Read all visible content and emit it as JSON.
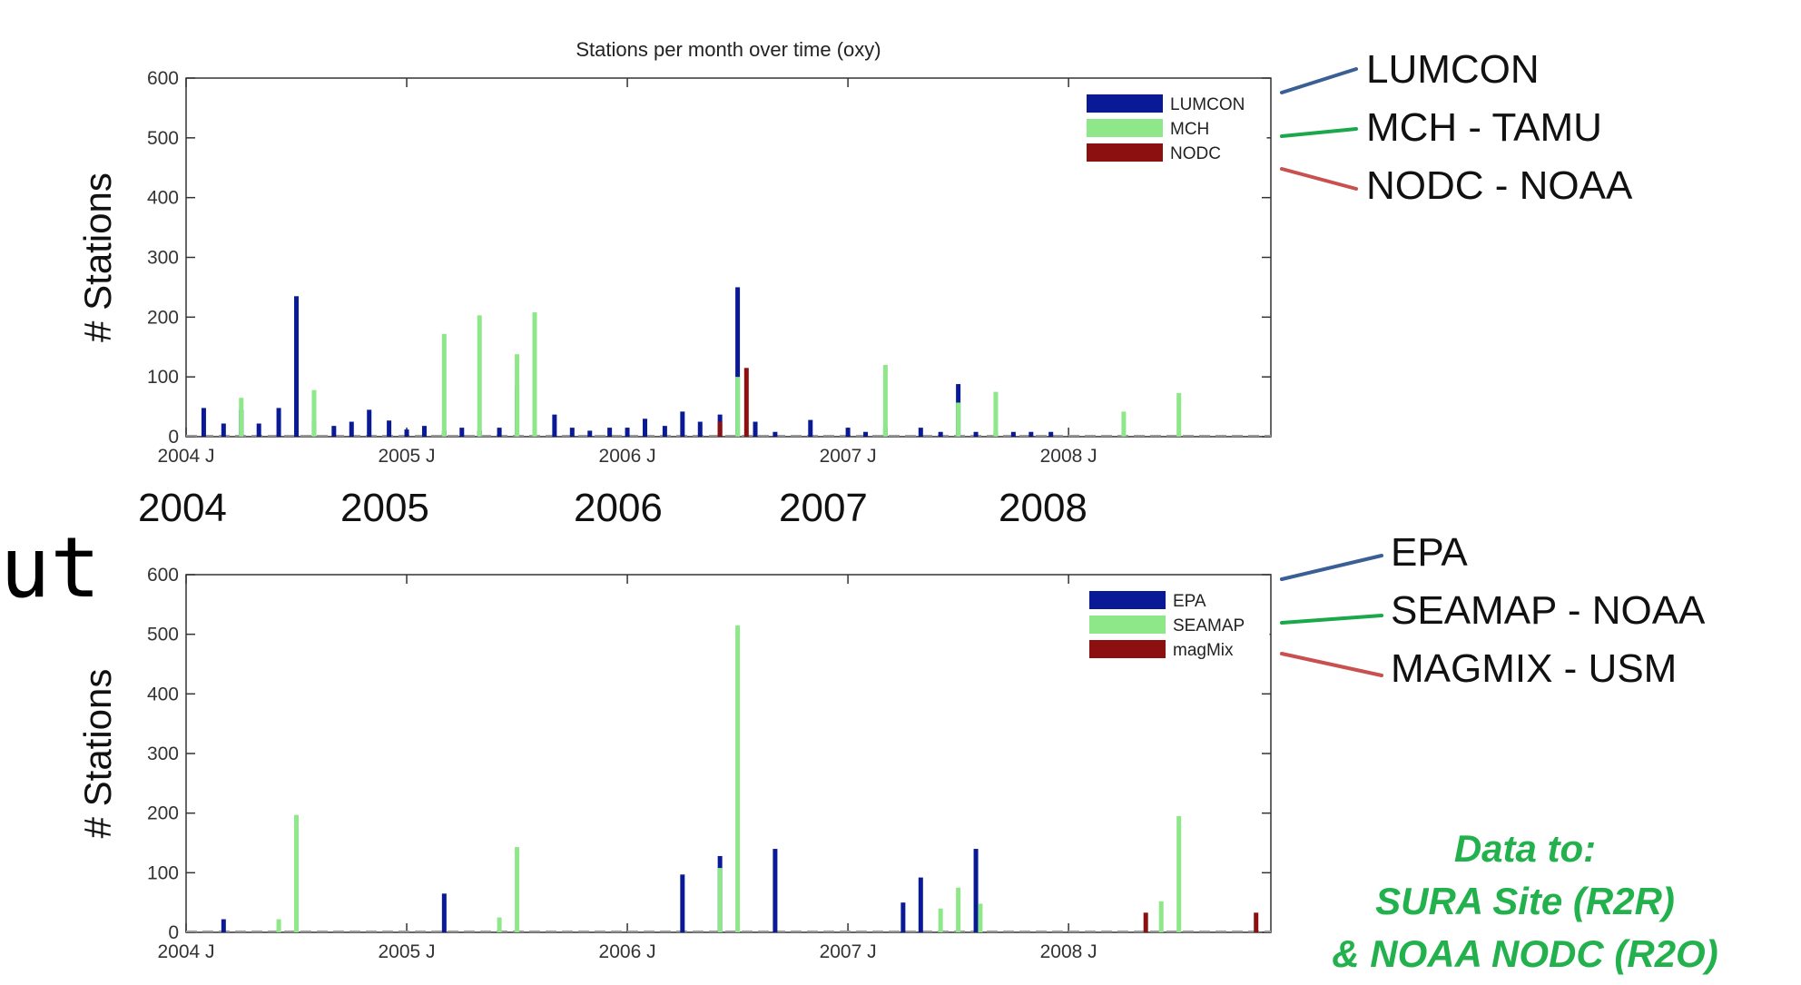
{
  "cut_text": "ut",
  "year_labels": [
    "2004",
    "2005",
    "2006",
    "2007",
    "2008"
  ],
  "side_legend_top": [
    {
      "label": "LUMCON",
      "color": "#3a5f95"
    },
    {
      "label": "MCH - TAMU",
      "color": "#1aa84a"
    },
    {
      "label": "NODC - NOAA",
      "color": "#c8504e"
    }
  ],
  "side_legend_bottom": [
    {
      "label": "EPA",
      "color": "#3a5f95"
    },
    {
      "label": "SEAMAP - NOAA",
      "color": "#1aa84a"
    },
    {
      "label": "MAGMIX - USM",
      "color": "#c8504e"
    }
  ],
  "note": {
    "line1": "Data to:",
    "line2": "SURA Site (R2R)",
    "line3": "& NOAA NODC (R2O)"
  },
  "chart_data": [
    {
      "type": "bar",
      "title": "Stations per month over time (oxy)",
      "ylabel": "# Stations",
      "xlabel": "",
      "ylim": [
        0,
        600
      ],
      "yticks": [
        0,
        100,
        200,
        300,
        400,
        500,
        600
      ],
      "xlim": [
        2004.0,
        2008.917
      ],
      "xticks": [
        {
          "value": 2004.0,
          "label": "2004 J"
        },
        {
          "value": 2005.0,
          "label": "2005 J"
        },
        {
          "value": 2006.0,
          "label": "2006 J"
        },
        {
          "value": 2007.0,
          "label": "2007 J"
        },
        {
          "value": 2008.0,
          "label": "2008 J"
        }
      ],
      "legend_position": "top-right",
      "series": [
        {
          "name": "LUMCON",
          "color": "#0a1a96",
          "x": [
            2004.08,
            2004.17,
            2004.25,
            2004.33,
            2004.42,
            2004.5,
            2004.58,
            2004.67,
            2004.75,
            2004.83,
            2004.92,
            2005.0,
            2005.08,
            2005.17,
            2005.25,
            2005.33,
            2005.42,
            2005.5,
            2005.58,
            2005.67,
            2005.75,
            2005.83,
            2005.92,
            2006.0,
            2006.08,
            2006.17,
            2006.25,
            2006.33,
            2006.42,
            2006.5,
            2006.58,
            2006.67,
            2006.83,
            2007.0,
            2007.08,
            2007.17,
            2007.33,
            2007.42,
            2007.5,
            2007.58,
            2007.67,
            2007.75,
            2007.83,
            2007.92
          ],
          "y": [
            48,
            22,
            45,
            22,
            48,
            235,
            27,
            18,
            25,
            45,
            27,
            12,
            18,
            10,
            15,
            10,
            15,
            85,
            15,
            37,
            15,
            10,
            15,
            15,
            30,
            18,
            42,
            25,
            37,
            250,
            25,
            8,
            28,
            15,
            8,
            15,
            15,
            8,
            88,
            8,
            8,
            8,
            8,
            8
          ]
        },
        {
          "name": "MCH",
          "color": "#8ee88a",
          "x": [
            2004.25,
            2004.58,
            2005.17,
            2005.33,
            2005.5,
            2005.58,
            2006.5,
            2007.17,
            2007.5,
            2007.67,
            2008.25,
            2008.5
          ],
          "y": [
            65,
            78,
            172,
            203,
            138,
            208,
            100,
            120,
            57,
            75,
            42,
            73
          ]
        },
        {
          "name": "NODC",
          "color": "#8c1010",
          "x": [
            2006.42,
            2006.54
          ],
          "y": [
            25,
            115
          ]
        }
      ]
    },
    {
      "type": "bar",
      "title": "",
      "ylabel": "# Stations",
      "xlabel": "",
      "ylim": [
        0,
        600
      ],
      "yticks": [
        0,
        100,
        200,
        300,
        400,
        500,
        600
      ],
      "xlim": [
        2004.0,
        2008.917
      ],
      "xticks": [
        {
          "value": 2004.0,
          "label": "2004 J"
        },
        {
          "value": 2005.0,
          "label": "2005 J"
        },
        {
          "value": 2006.0,
          "label": "2006 J"
        },
        {
          "value": 2007.0,
          "label": "2007 J"
        },
        {
          "value": 2008.0,
          "label": "2008 J"
        }
      ],
      "legend_position": "top-right",
      "series": [
        {
          "name": "EPA",
          "color": "#0a1a96",
          "x": [
            2004.17,
            2005.17,
            2006.25,
            2006.42,
            2006.67,
            2007.25,
            2007.33,
            2007.58
          ],
          "y": [
            22,
            65,
            97,
            128,
            140,
            50,
            92,
            140
          ]
        },
        {
          "name": "SEAMAP",
          "color": "#8ee88a",
          "x": [
            2004.42,
            2004.5,
            2005.42,
            2005.5,
            2006.5,
            2006.42,
            2007.42,
            2007.5,
            2007.6,
            2008.42,
            2008.5
          ],
          "y": [
            22,
            197,
            25,
            143,
            515,
            108,
            40,
            75,
            48,
            52,
            195
          ]
        },
        {
          "name": "magMix",
          "color": "#8c1010",
          "x": [
            2008.35,
            2008.85
          ],
          "y": [
            33,
            33
          ]
        }
      ]
    }
  ]
}
